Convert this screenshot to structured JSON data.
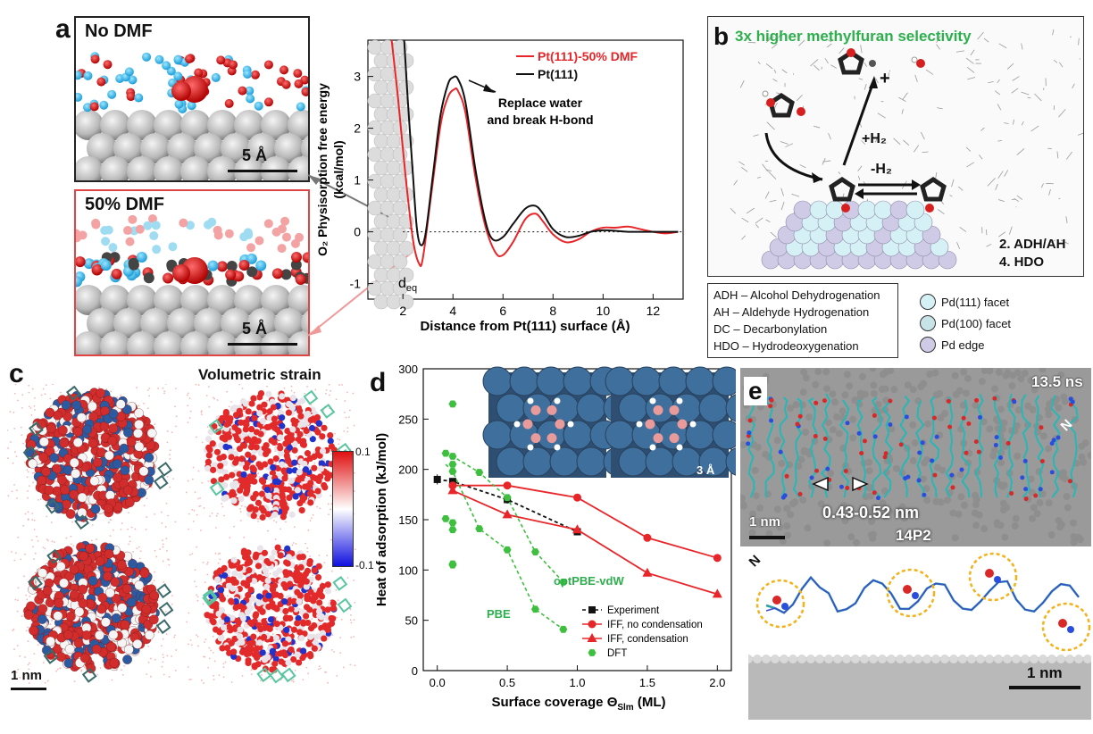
{
  "panels": {
    "a": {
      "letter": "a",
      "top_title": "No DMF",
      "bottom_title": "50% DMF",
      "scale_top": "5 Å",
      "scale_bottom": "5 Å",
      "deq_label": "d",
      "deq_sub": "eq",
      "annotation_line1": "Replace water",
      "annotation_line2": "and break H-bond"
    },
    "b": {
      "letter": "b",
      "headline": "3x higher methylfuran selectivity",
      "plus": "+",
      "h2_plus": "+H₂",
      "h2_minus": "-H₂",
      "step2": "2. ADH/AH",
      "step4": "4. HDO",
      "abbrev": [
        "ADH – Alcohol Dehydrogenation",
        "AH – Aldehyde Hydrogenation",
        "DC – Decarbonylation",
        "HDO – Hydrodeoxygenation"
      ],
      "facets": [
        {
          "label": "Pd(111) facet",
          "color": "#d6f1f6"
        },
        {
          "label": "Pd(100) facet",
          "color": "#c7e3e8"
        },
        {
          "label": "Pd edge",
          "color": "#cfcbe6"
        }
      ]
    },
    "c": {
      "letter": "c",
      "title": "Volumetric strain",
      "scale": "1 nm",
      "cbar_max": "0.1",
      "cbar_min": "-0.1"
    },
    "d": {
      "letter": "d",
      "scale": "3 Å",
      "label_optpbe": "optPBE-vdW",
      "label_pbe": "PBE"
    },
    "e": {
      "letter": "e",
      "time": "13.5 ns",
      "distance": "0.43-0.52 nm",
      "peptide": "14P2",
      "scale_top": "1 nm",
      "scale_bottom": "1 nm",
      "n_label": "N"
    }
  },
  "chart_data": [
    {
      "id": "a",
      "type": "line",
      "xlabel": "Distance from Pt(111) surface (Å)",
      "ylabel_line1": "O₂ Physisorption free energy",
      "ylabel_line2": "(kcal/mol)",
      "xlim": [
        0.6,
        13.2
      ],
      "ylim": [
        -1.3,
        3.7
      ],
      "xticks": [
        2,
        4,
        6,
        8,
        10,
        12
      ],
      "yticks": [
        -1,
        0,
        1,
        2,
        3
      ],
      "legend_position": "top-right",
      "series": [
        {
          "name": "Pt(111)-50% DMF",
          "color": "#e8262a",
          "x": [
            1.55,
            1.8,
            2.1,
            2.4,
            2.65,
            2.8,
            3.1,
            3.5,
            3.8,
            4.05,
            4.2,
            4.5,
            4.9,
            5.3,
            5.7,
            6.0,
            6.4,
            6.9,
            7.3,
            7.6,
            8.0,
            8.5,
            9.0,
            9.5,
            10.0,
            10.5,
            11.0,
            11.5,
            12.0,
            12.5,
            13.0
          ],
          "y": [
            3.7,
            2.6,
            1.1,
            -0.15,
            -0.62,
            -0.5,
            0.6,
            2.05,
            2.6,
            2.75,
            2.72,
            2.3,
            1.05,
            0.1,
            -0.4,
            -0.45,
            -0.2,
            0.25,
            0.35,
            0.2,
            -0.05,
            -0.2,
            -0.15,
            0.0,
            0.08,
            0.08,
            0.1,
            0.05,
            0.0,
            -0.03,
            0.0
          ]
        },
        {
          "name": "Pt(111)",
          "color": "#111111",
          "x": [
            2.05,
            2.2,
            2.4,
            2.55,
            2.7,
            2.9,
            3.2,
            3.5,
            3.8,
            4.0,
            4.2,
            4.5,
            4.9,
            5.3,
            5.6,
            6.0,
            6.4,
            6.9,
            7.3,
            7.6,
            8.0,
            8.5,
            9.0,
            9.5,
            10.0,
            10.5,
            11.0,
            11.5,
            12.0,
            12.5,
            13.0
          ],
          "y": [
            3.7,
            2.5,
            1.1,
            0.1,
            -0.25,
            -0.05,
            1.1,
            2.25,
            2.85,
            2.98,
            2.95,
            2.5,
            1.2,
            0.2,
            -0.15,
            -0.1,
            0.15,
            0.45,
            0.5,
            0.35,
            0.05,
            -0.1,
            -0.08,
            0.0,
            0.03,
            0.02,
            0.0,
            0.0,
            0.0,
            0.0,
            0.0
          ]
        }
      ]
    },
    {
      "id": "d",
      "type": "line",
      "xlabel": "Surface coverage Θ",
      "xlabel_sub": "Slm",
      "xlabel_unit": " (ML)",
      "ylabel": "Heat of adsorption (kJ/mol)",
      "xlim": [
        -0.1,
        2.1
      ],
      "ylim": [
        0,
        300
      ],
      "xticks": [
        0.0,
        0.5,
        1.0,
        1.5,
        2.0
      ],
      "xtick_labels": [
        "0.0",
        "0.5",
        "1.0",
        "1.5",
        "2.0"
      ],
      "yticks": [
        0,
        50,
        100,
        150,
        200,
        250,
        300
      ],
      "legend_position": "bottom-right",
      "series": [
        {
          "name": "Experiment",
          "color": "#111111",
          "marker": "square",
          "dash": true,
          "x": [
            0.0,
            0.11,
            0.5,
            1.0
          ],
          "y": [
            190,
            188,
            170,
            138
          ],
          "err": [
            5,
            3,
            4,
            3
          ]
        },
        {
          "name": "IFF, no condensation",
          "color": "#e8262a",
          "marker": "circle",
          "dash": false,
          "x": [
            0.11,
            0.5,
            1.0,
            1.5,
            2.0
          ],
          "y": [
            184,
            184,
            172,
            132,
            112
          ]
        },
        {
          "name": "IFF, condensation",
          "color": "#e8262a",
          "marker": "triangle",
          "dash": false,
          "x": [
            0.11,
            0.5,
            1.0,
            1.5,
            2.0
          ],
          "y": [
            179,
            155,
            140,
            97,
            76
          ]
        },
        {
          "name": "DFT",
          "color": "#3fbf3f",
          "marker": "hexagon",
          "dash": false,
          "scatter": true,
          "x": [
            0.06,
            0.06,
            0.11,
            0.11,
            0.11,
            0.11,
            0.11,
            0.11,
            0.11,
            0.11,
            0.3,
            0.3,
            0.5,
            0.5,
            0.7,
            0.7,
            0.9,
            0.9
          ],
          "y": [
            216,
            151,
            265,
            213,
            205,
            198,
            147,
            140,
            106,
            105,
            197,
            141,
            172,
            120,
            118,
            61,
            88,
            41
          ]
        },
        {
          "name": "optPBE-vdW",
          "color": "#3fbf3f",
          "dash": true,
          "line_only": true,
          "x": [
            0.06,
            0.11,
            0.3,
            0.5,
            0.7,
            0.9
          ],
          "y": [
            216,
            213,
            197,
            172,
            118,
            88
          ]
        },
        {
          "name": "PBE",
          "color": "#3fbf3f",
          "dash": true,
          "line_only": true,
          "x": [
            0.06,
            0.11,
            0.3,
            0.5,
            0.7,
            0.9
          ],
          "y": [
            205,
            198,
            141,
            120,
            61,
            41
          ]
        }
      ]
    }
  ]
}
